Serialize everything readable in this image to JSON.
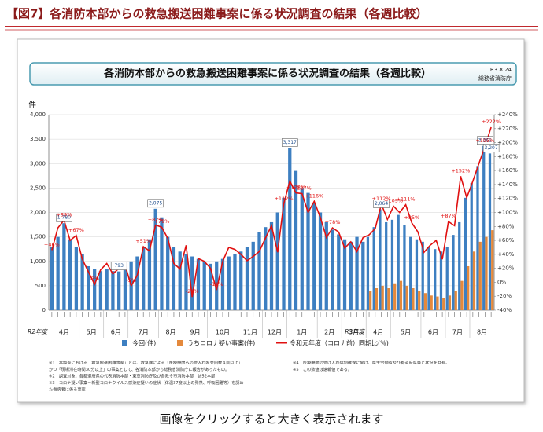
{
  "header": {
    "title": "【図7】各消防本部からの救急搬送困難事案に係る状況調査の結果（各週比較）"
  },
  "chart_data": {
    "type": "bar_line",
    "title": "各消防本部からの救急搬送困難事案に係る状況調査の結果（各週比較）",
    "date": "R3.8.24",
    "source": "総務省消防庁",
    "ylabel": "件",
    "months": [
      {
        "label": "4月",
        "weeks": 5
      },
      {
        "label": "5月",
        "weeks": 4
      },
      {
        "label": "6月",
        "weeks": 4
      },
      {
        "label": "7月",
        "weeks": 5
      },
      {
        "label": "8月",
        "weeks": 4
      },
      {
        "label": "9月",
        "weeks": 4
      },
      {
        "label": "10月",
        "weeks": 5
      },
      {
        "label": "11月",
        "weeks": 4
      },
      {
        "label": "12月",
        "weeks": 4
      },
      {
        "label": "1月",
        "weeks": 5
      },
      {
        "label": "2月",
        "weeks": 4
      },
      {
        "label": "3月",
        "weeks": 4
      },
      {
        "label": "4月",
        "weeks": 4
      },
      {
        "label": "5月",
        "weeks": 5
      },
      {
        "label": "6月",
        "weeks": 4
      },
      {
        "label": "7月",
        "weeks": 4
      },
      {
        "label": "8月",
        "weeks": 4
      }
    ],
    "fiscal_years": [
      {
        "label": "R2年度",
        "months": 12
      },
      {
        "label": "R3年度",
        "months": 5
      }
    ],
    "ylim": [
      0,
      4000
    ],
    "yticks": [
      0,
      500,
      {
        "value": 1000,
        "label": "1,000"
      },
      {
        "value": 1500,
        "label": "1,500"
      },
      {
        "value": 2000,
        "label": "2,000"
      },
      {
        "value": 2500,
        "label": "2,500"
      },
      {
        "value": 3000,
        "label": "3,000"
      },
      {
        "value": 3500,
        "label": "3,500"
      },
      {
        "value": 4000,
        "label": "4,000"
      }
    ],
    "y2lim": [
      -40,
      240
    ],
    "y2ticks": [
      {
        "value": -40,
        "label": "-40%"
      },
      {
        "value": -20,
        "label": "-20%"
      },
      {
        "value": 0,
        "label": "0%"
      },
      {
        "value": 20,
        "label": "+20%"
      },
      {
        "value": 40,
        "label": "+40%"
      },
      {
        "value": 60,
        "label": "+60%"
      },
      {
        "value": 80,
        "label": "+80%"
      },
      {
        "value": 100,
        "label": "+100%"
      },
      {
        "value": 120,
        "label": "+120%"
      },
      {
        "value": 140,
        "label": "+140%"
      },
      {
        "value": 160,
        "label": "+160%"
      },
      {
        "value": 180,
        "label": "+180%"
      },
      {
        "value": 200,
        "label": "+200%"
      },
      {
        "value": 220,
        "label": "+220%"
      },
      {
        "value": 240,
        "label": "+240%"
      }
    ],
    "grid": true,
    "series": [
      {
        "name": "今回(件)",
        "color": "#3d7fc1",
        "kind": "bar",
        "values": [
          1300,
          1500,
          1780,
          1450,
          1300,
          1150,
          900,
          850,
          800,
          850,
          800,
          793,
          900,
          1000,
          1100,
          1300,
          1450,
          2075,
          1900,
          1500,
          1300,
          1200,
          1150,
          1100,
          1050,
          1000,
          950,
          1000,
          1050,
          1100,
          1150,
          1200,
          1300,
          1400,
          1600,
          1700,
          1800,
          2000,
          2300,
          3317,
          2850,
          2500,
          2400,
          2200,
          2000,
          1800,
          1650,
          1550,
          1450,
          1400,
          1500,
          1400,
          1500,
          1700,
          2064,
          1800,
          1850,
          1950,
          1750,
          1500,
          1450,
          1400,
          1300,
          1250,
          1200,
          1300,
          1540,
          1800,
          2300,
          2600,
          2950,
          3361,
          3207
        ],
        "value_labels": [
          null,
          null,
          "1,780",
          null,
          null,
          null,
          null,
          null,
          null,
          null,
          null,
          "793",
          null,
          null,
          null,
          null,
          null,
          "2,075",
          null,
          null,
          null,
          null,
          null,
          null,
          null,
          null,
          null,
          null,
          null,
          null,
          null,
          null,
          null,
          null,
          null,
          null,
          null,
          null,
          null,
          "3,317",
          null,
          null,
          null,
          null,
          null,
          null,
          null,
          null,
          null,
          null,
          null,
          null,
          null,
          null,
          "2,064",
          null,
          null,
          null,
          null,
          null,
          null,
          null,
          null,
          null,
          null,
          null,
          null,
          null,
          null,
          null,
          null,
          "3,361",
          "3,207"
        ]
      },
      {
        "name": "うちコロナ疑い事案(件)",
        "color": "#e4893c",
        "kind": "bar",
        "values": [
          null,
          null,
          null,
          null,
          null,
          null,
          null,
          null,
          null,
          null,
          null,
          null,
          null,
          null,
          null,
          null,
          null,
          null,
          null,
          null,
          null,
          null,
          null,
          null,
          null,
          null,
          null,
          null,
          null,
          null,
          null,
          null,
          null,
          null,
          null,
          null,
          null,
          null,
          null,
          null,
          null,
          null,
          null,
          null,
          null,
          null,
          null,
          null,
          null,
          null,
          null,
          null,
          400,
          450,
          500,
          450,
          550,
          600,
          500,
          450,
          400,
          350,
          300,
          280,
          250,
          300,
          400,
          600,
          900,
          1200,
          1400,
          1500,
          1637
        ]
      },
      {
        "name": "令和元年度（コロナ前）同期比(%)",
        "color": "#e01010",
        "kind": "line",
        "axis": "y2",
        "values": [
          46,
          78,
          89,
          60,
          67,
          33,
          15,
          -3,
          18,
          27,
          12,
          20,
          25,
          -5,
          10,
          51,
          45,
          82,
          79,
          63,
          27,
          19,
          53,
          -21,
          34,
          30,
          20,
          -11,
          30,
          50,
          47,
          40,
          31,
          37,
          44,
          63,
          81,
          43,
          112,
          145,
          128,
          127,
          100,
          116,
          93,
          64,
          78,
          72,
          49,
          58,
          44,
          64,
          68,
          77,
          112,
          90,
          109,
          100,
          111,
          85,
          72,
          43,
          53,
          60,
          33,
          87,
          81,
          152,
          121,
          145,
          170,
          195,
          222
        ],
        "value_labels": [
          "+46%",
          null,
          "+89%",
          null,
          "+67%",
          null,
          null,
          "-3%",
          null,
          null,
          null,
          null,
          null,
          "-5%",
          null,
          "+51%",
          null,
          "+82%",
          "+79%",
          null,
          null,
          null,
          null,
          "-21%",
          null,
          null,
          null,
          "-11%",
          null,
          null,
          null,
          null,
          null,
          null,
          null,
          null,
          null,
          null,
          "+112%",
          null,
          "+128%",
          "+127%",
          null,
          "+116%",
          null,
          null,
          "+78%",
          null,
          null,
          null,
          null,
          null,
          null,
          null,
          "+112%",
          null,
          "+109%",
          null,
          "+111%",
          "+85%",
          null,
          null,
          null,
          null,
          null,
          "+87%",
          null,
          "+152%",
          null,
          null,
          null,
          "+195%",
          "+222%"
        ]
      }
    ],
    "notes_left": [
      "※1　本調査における「救急搬送困難事案」とは、救急隊による「医療機関への受入れ照会回数４回以上」",
      "かつ「現場滞在時間30分以上」の事案として、各消防本部から総務省消防庁に報告があったもの。",
      "※2　調査対象：各都道府県の代表消防本部・東京消防庁及び各政令市消防本部　計52本部",
      "※3　コロナ疑い事案＝新型コロナウイルス感染症疑いの症状（体温37度以上の発熱、呼吸困難等）を認め",
      "た傷病者に係る事案"
    ],
    "notes_right": [
      "※4　医療機関の受け入れ体制確保に向け、厚生労働省及び都道府県等と状況を共有。",
      "※5　この数値は速報値である。"
    ]
  },
  "caption": "画像をクリックすると大きく表示されます"
}
